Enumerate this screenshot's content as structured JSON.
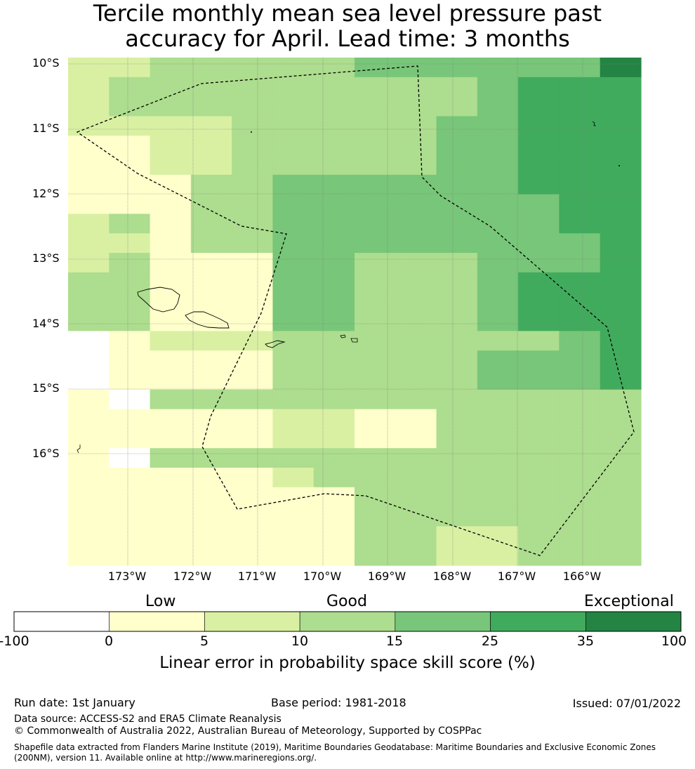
{
  "title": {
    "line1": "Tercile monthly mean sea level pressure past",
    "line2": "accuracy for April. Lead time: 3 months"
  },
  "map": {
    "lat_labels": [
      "10°S",
      "11°S",
      "12°S",
      "13°S",
      "14°S",
      "15°S",
      "16°S"
    ],
    "lon_labels": [
      "173°W",
      "172°W",
      "171°W",
      "170°W",
      "169°W",
      "168°W",
      "167°W",
      "166°W"
    ],
    "grid_rows": [
      "22333334444446",
      "23333333334555",
      "23333333334555",
      "22223333344555",
      "11223333344555",
      "11223333344555",
      "11133444444555",
      "11133444444455",
      "23133444444455",
      "22133444444445",
      "23111443334445",
      "33111443334555",
      "33111443334555",
      "33111443334555",
      "01222333333345",
      "01111333334445",
      "01111333334445",
      "10333333333333",
      "11111221133333",
      "11111221133333",
      "10333333333333",
      "11111233333333",
      "11111113333333",
      "11111113333333",
      "11111113322333",
      "11111113322333"
    ]
  },
  "colorbar": {
    "categories": [
      "Low",
      "Good",
      "Exceptional"
    ],
    "ticks": [
      "-100",
      "0",
      "5",
      "10",
      "15",
      "25",
      "35",
      "100"
    ],
    "colors": [
      "#ffffff",
      "#ffffcc",
      "#d9f0a3",
      "#addd8e",
      "#78c679",
      "#41ab5d",
      "#238443"
    ],
    "label": "Linear error in probability space skill score (%)"
  },
  "footer": {
    "run_date": "Run date: 1st January",
    "base_period": "Base period: 1981-2018",
    "issued": "Issued: 07/01/2022",
    "data_source": "Data source: ACCESS-S2 and ERA5 Climate Reanalysis",
    "copyright": "© Commonwealth of Australia 2022, Australian Bureau of Meteorology, Supported by COSPPac",
    "shapefile": "Shapefile data extracted from Flanders Marine Institute (2019), Maritime Boundaries Geodatabase: Maritime Boundaries and Exclusive Economic Zones (200NM), version 11. Available online at http://www.marineregions.org/."
  }
}
